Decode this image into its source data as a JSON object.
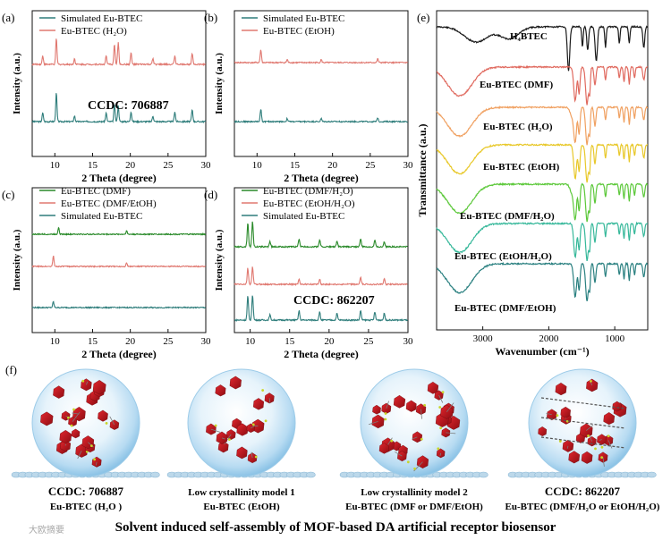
{
  "chart_data": [
    {
      "id": "a",
      "type": "line",
      "panel_label": "(a)",
      "xlabel": "2 Theta (degree)",
      "ylabel": "Intensity (a.u.)",
      "xlim": [
        7,
        30
      ],
      "xticks": [
        10,
        15,
        20,
        25,
        30
      ],
      "x_tick_labels": [
        "10",
        "15",
        "20",
        "25",
        "30"
      ],
      "y_ticks_shown": false,
      "legend_position": "top-left",
      "series": [
        {
          "name": "Simulated Eu-BTEC",
          "color": "#2e7d7b",
          "stack_order": 1,
          "peaks": [
            [
              8.4,
              0.3
            ],
            [
              10.2,
              1.0
            ],
            [
              12.6,
              0.2
            ],
            [
              16.8,
              0.3
            ],
            [
              17.9,
              0.6
            ],
            [
              18.4,
              0.55
            ],
            [
              20.1,
              0.35
            ],
            [
              23.0,
              0.2
            ],
            [
              25.9,
              0.35
            ],
            [
              28.2,
              0.4
            ]
          ]
        },
        {
          "name": "Eu-BTEC (H₂O)",
          "color": "#e07870",
          "stack_order": 2,
          "peaks": [
            [
              8.4,
              0.3
            ],
            [
              10.2,
              0.9
            ],
            [
              12.6,
              0.2
            ],
            [
              16.8,
              0.3
            ],
            [
              17.9,
              0.7
            ],
            [
              18.4,
              0.75
            ],
            [
              20.1,
              0.4
            ],
            [
              23.0,
              0.2
            ],
            [
              25.9,
              0.3
            ],
            [
              28.2,
              0.4
            ]
          ]
        }
      ],
      "annotation": "CCDC: 706887"
    },
    {
      "id": "b",
      "type": "line",
      "panel_label": "(b)",
      "xlabel": "2 Theta (degree)",
      "ylabel": "Intensity (a.u.)",
      "xlim": [
        7,
        30
      ],
      "xticks": [
        10,
        15,
        20,
        25,
        30
      ],
      "x_tick_labels": [
        "10",
        "15",
        "20",
        "25",
        "30"
      ],
      "y_ticks_shown": false,
      "legend_position": "top-left",
      "series": [
        {
          "name": "Simulated Eu-BTEC",
          "color": "#2e7d7b",
          "stack_order": 1,
          "peaks": [
            [
              10.5,
              0.5
            ],
            [
              14.0,
              0.12
            ],
            [
              18.5,
              0.12
            ],
            [
              26.0,
              0.15
            ]
          ]
        },
        {
          "name": "Eu-BTEC (EtOH)",
          "color": "#e07870",
          "stack_order": 2,
          "peaks": [
            [
              10.5,
              0.5
            ],
            [
              14.0,
              0.12
            ],
            [
              18.5,
              0.12
            ],
            [
              26.0,
              0.15
            ]
          ]
        }
      ]
    },
    {
      "id": "c",
      "type": "line",
      "panel_label": "(c)",
      "xlabel": "2 Theta (degree)",
      "ylabel": "Intensity (a.u.)",
      "xlim": [
        7,
        30
      ],
      "xticks": [
        10,
        15,
        20,
        25,
        30
      ],
      "x_tick_labels": [
        "10",
        "15",
        "20",
        "25",
        "30"
      ],
      "y_ticks_shown": false,
      "legend_position": "top-left",
      "series": [
        {
          "name": "Eu-BTEC (DMF)",
          "color": "#2a8a2a",
          "stack_order": 3,
          "peaks": [
            [
              10.5,
              0.3
            ],
            [
              19.5,
              0.15
            ]
          ]
        },
        {
          "name": "Eu-BTEC (DMF/EtOH)",
          "color": "#e07870",
          "stack_order": 2,
          "peaks": [
            [
              9.8,
              0.45
            ],
            [
              19.5,
              0.15
            ]
          ]
        },
        {
          "name": "Simulated Eu-BTEC",
          "color": "#2e7d7b",
          "stack_order": 1,
          "peaks": [
            [
              9.8,
              0.25
            ]
          ]
        }
      ]
    },
    {
      "id": "d",
      "type": "line",
      "panel_label": "(d)",
      "xlabel": "2 Theta (degree)",
      "ylabel": "Intensity (a.u.)",
      "xlim": [
        8,
        30
      ],
      "xticks": [
        10,
        15,
        20,
        25,
        30
      ],
      "x_tick_labels": [
        "10",
        "15",
        "20",
        "25",
        "30"
      ],
      "y_ticks_shown": false,
      "legend_position": "top-left",
      "series": [
        {
          "name": "Eu-BTEC (DMF/H₂O)",
          "color": "#2a8a2a",
          "stack_order": 3,
          "peaks": [
            [
              9.7,
              0.9
            ],
            [
              10.3,
              0.95
            ],
            [
              12.5,
              0.2
            ],
            [
              16.2,
              0.3
            ],
            [
              18.8,
              0.25
            ],
            [
              21.0,
              0.2
            ],
            [
              24.0,
              0.3
            ],
            [
              25.8,
              0.25
            ],
            [
              27.0,
              0.2
            ]
          ]
        },
        {
          "name": "Eu-BTEC (EtOH/H₂O)",
          "color": "#e07870",
          "stack_order": 2,
          "peaks": [
            [
              9.7,
              0.6
            ],
            [
              10.3,
              0.65
            ],
            [
              16.2,
              0.2
            ],
            [
              18.8,
              0.2
            ],
            [
              24.0,
              0.25
            ],
            [
              27.0,
              0.2
            ]
          ]
        },
        {
          "name": "Simulated Eu-BTEC",
          "color": "#2e7d7b",
          "stack_order": 1,
          "peaks": [
            [
              9.7,
              0.9
            ],
            [
              10.3,
              0.95
            ],
            [
              12.5,
              0.2
            ],
            [
              16.2,
              0.35
            ],
            [
              18.8,
              0.3
            ],
            [
              21.0,
              0.25
            ],
            [
              24.0,
              0.35
            ],
            [
              25.8,
              0.3
            ],
            [
              27.0,
              0.25
            ]
          ]
        }
      ],
      "annotation": "CCDC: 862207"
    },
    {
      "id": "e",
      "type": "line",
      "panel_label": "(e)",
      "xlabel": "Wavenumber (cm⁻¹)",
      "ylabel": "Transmittance (a.u.)",
      "xlim": [
        3700,
        500
      ],
      "xticks": [
        3000,
        2000,
        1000
      ],
      "x_tick_labels": [
        "3000",
        "2000",
        "1000"
      ],
      "y_ticks_shown": false,
      "series": [
        {
          "name": "H₄BTEC",
          "color": "#1a1a1a"
        },
        {
          "name": "Eu-BTEC (DMF)",
          "color": "#e06a5f"
        },
        {
          "name": "Eu-BTEC (H₂O)",
          "color": "#f0a060"
        },
        {
          "name": "Eu-BTEC (EtOH)",
          "color": "#e8c82a"
        },
        {
          "name": "Eu-BTEC (DMF/H₂O)",
          "color": "#5cc83a"
        },
        {
          "name": "Eu-BTEC (EtOH/H₂O)",
          "color": "#36b89a"
        },
        {
          "name": "Eu-BTEC (DMF/EtOH)",
          "color": "#2a8080"
        }
      ]
    }
  ],
  "panel_f": {
    "label": "(f)",
    "models": [
      {
        "code": "CCDC: 706887",
        "sub": "Eu-BTEC (H₂O )"
      },
      {
        "code": "Low crystallinity model 1",
        "sub": "Eu-BTEC (EtOH)"
      },
      {
        "code": "Low crystallinity model 2",
        "sub": "Eu-BTEC (DMF or DMF/EtOH)"
      },
      {
        "code": "CCDC: 862207",
        "sub": "Eu-BTEC (DMF/H₂O or EtOH/H₂O)"
      }
    ],
    "caption": "Solvent induced self-assembly of MOF-based DA artificial receptor biosensor",
    "watermark": "大欧摘要"
  },
  "colors": {
    "simulated": "#2e7d7b",
    "pink": "#e07870",
    "green": "#2a8a2a",
    "crystal": "#c4161c",
    "sphere": "#b8dcf0"
  }
}
